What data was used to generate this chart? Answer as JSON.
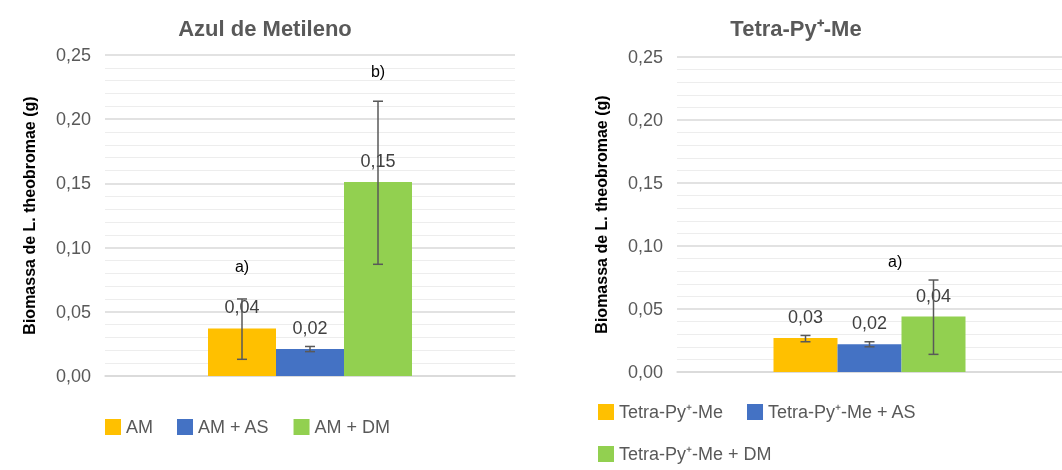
{
  "chart_data": [
    {
      "type": "bar",
      "title": "Azul de Metileno",
      "ylabel": "Biomassa de L. theobromae (g)",
      "categories": [
        null
      ],
      "series": [
        {
          "name": "AM",
          "color": "#ffc000",
          "values": [
            0.037
          ],
          "errors": [
            [
              0.013,
              0.06
            ]
          ],
          "value_labels": [
            "0,04"
          ]
        },
        {
          "name": "AM + AS",
          "color": "#4472c4",
          "values": [
            0.021
          ],
          "errors": [
            [
              0.019,
              0.023
            ]
          ],
          "value_labels": [
            "0,02"
          ]
        },
        {
          "name": "AM + DM",
          "color": "#92d050",
          "values": [
            0.151
          ],
          "errors": [
            [
              0.087,
              0.214
            ]
          ],
          "value_labels": [
            "0,15"
          ]
        }
      ],
      "ylim": [
        0,
        0.25
      ],
      "yticks": [
        {
          "value": 0,
          "label": "0,00"
        },
        {
          "value": 0.05,
          "label": "0,05"
        },
        {
          "value": 0.1,
          "label": "0,10"
        },
        {
          "value": 0.15,
          "label": "0,15"
        },
        {
          "value": 0.2,
          "label": "0,20"
        },
        {
          "value": 0.25,
          "label": "0,25"
        }
      ],
      "annotations": [
        "a)",
        "b)"
      ],
      "grid": "y",
      "legend": "bottom"
    },
    {
      "type": "bar",
      "title": "Tetra-Py⁺-Me",
      "ylabel": "Biomassa de L. theobromae (g)",
      "categories": [
        null
      ],
      "series": [
        {
          "name": "Tetra-Py⁺-Me",
          "color": "#ffc000",
          "values": [
            0.027
          ],
          "errors": [
            [
              0.024,
              0.029
            ]
          ],
          "value_labels": [
            "0,03"
          ]
        },
        {
          "name": "Tetra-Py⁺-Me + AS",
          "color": "#4472c4",
          "values": [
            0.022
          ],
          "errors": [
            [
              0.02,
              0.024
            ]
          ],
          "value_labels": [
            "0,02"
          ]
        },
        {
          "name": "Tetra-Py⁺-Me + DM",
          "color": "#92d050",
          "values": [
            0.044
          ],
          "errors": [
            [
              0.014,
              0.073
            ]
          ],
          "value_labels": [
            "0,04"
          ]
        }
      ],
      "ylim": [
        0,
        0.25
      ],
      "yticks": [
        {
          "value": 0,
          "label": "0,00"
        },
        {
          "value": 0.05,
          "label": "0,05"
        },
        {
          "value": 0.1,
          "label": "0,10"
        },
        {
          "value": 0.15,
          "label": "0,15"
        },
        {
          "value": 0.2,
          "label": "0,20"
        },
        {
          "value": 0.25,
          "label": "0,25"
        }
      ],
      "annotations": [
        "a)"
      ],
      "grid": "y",
      "legend": "bottom"
    }
  ]
}
